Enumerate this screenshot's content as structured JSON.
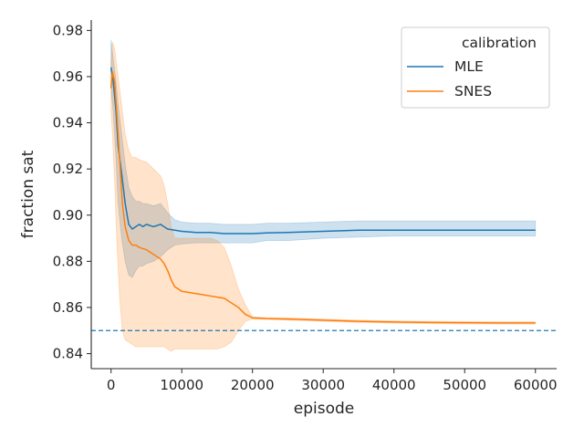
{
  "chart_data": {
    "type": "line",
    "title": "",
    "xlabel": "episode",
    "ylabel": "fraction sat",
    "xlim": [
      -2800,
      63000
    ],
    "ylim": [
      0.8335,
      0.9845
    ],
    "xticks": [
      0,
      10000,
      20000,
      30000,
      40000,
      50000,
      60000
    ],
    "xtick_labels": [
      "0",
      "10000",
      "20000",
      "30000",
      "40000",
      "50000",
      "60000"
    ],
    "yticks": [
      0.84,
      0.86,
      0.88,
      0.9,
      0.92,
      0.94,
      0.96,
      0.98
    ],
    "ytick_labels": [
      "0.84",
      "0.86",
      "0.88",
      "0.90",
      "0.92",
      "0.94",
      "0.96",
      "0.98"
    ],
    "legend": {
      "title": "calibration",
      "location": "top-right"
    },
    "reference_line": {
      "y": 0.85,
      "style": "dashed",
      "color": "#1f77b4"
    },
    "series": [
      {
        "name": "MLE",
        "color": "#1f77b4",
        "x": [
          0,
          300,
          700,
          1000,
          1500,
          2000,
          2500,
          3000,
          3500,
          4000,
          4500,
          5000,
          6000,
          7000,
          8000,
          9000,
          10000,
          12000,
          14000,
          16000,
          18000,
          20000,
          22000,
          25000,
          30000,
          35000,
          40000,
          45000,
          50000,
          55000,
          60000
        ],
        "mean": [
          0.964,
          0.958,
          0.945,
          0.93,
          0.918,
          0.905,
          0.896,
          0.894,
          0.895,
          0.896,
          0.895,
          0.896,
          0.895,
          0.896,
          0.894,
          0.8935,
          0.893,
          0.8925,
          0.8925,
          0.892,
          0.892,
          0.892,
          0.8923,
          0.8925,
          0.893,
          0.8935,
          0.8935,
          0.8935,
          0.8935,
          0.8935,
          0.8935
        ],
        "lower": [
          0.955,
          0.945,
          0.925,
          0.905,
          0.89,
          0.88,
          0.874,
          0.873,
          0.876,
          0.878,
          0.878,
          0.879,
          0.88,
          0.882,
          0.885,
          0.887,
          0.8875,
          0.888,
          0.888,
          0.888,
          0.888,
          0.888,
          0.889,
          0.889,
          0.89,
          0.8905,
          0.891,
          0.891,
          0.891,
          0.891,
          0.891
        ],
        "upper": [
          0.976,
          0.968,
          0.958,
          0.948,
          0.935,
          0.922,
          0.912,
          0.908,
          0.906,
          0.906,
          0.905,
          0.905,
          0.904,
          0.905,
          0.901,
          0.898,
          0.897,
          0.8965,
          0.8965,
          0.896,
          0.896,
          0.896,
          0.8965,
          0.8965,
          0.897,
          0.8975,
          0.8975,
          0.8975,
          0.8975,
          0.8975,
          0.8975
        ]
      },
      {
        "name": "SNES",
        "color": "#ff7f0e",
        "x": [
          0,
          200,
          500,
          800,
          1200,
          1600,
          2000,
          2500,
          3000,
          3500,
          4000,
          5000,
          6000,
          7000,
          7500,
          8000,
          8500,
          9000,
          10000,
          11000,
          12000,
          13000,
          14000,
          15000,
          16000,
          17000,
          18000,
          19000,
          20000,
          22000,
          25000,
          30000,
          35000,
          40000,
          45000,
          50000,
          55000,
          60000
        ],
        "mean": [
          0.955,
          0.962,
          0.958,
          0.945,
          0.925,
          0.905,
          0.895,
          0.889,
          0.887,
          0.887,
          0.886,
          0.885,
          0.883,
          0.881,
          0.879,
          0.876,
          0.872,
          0.869,
          0.867,
          0.8665,
          0.866,
          0.8655,
          0.865,
          0.8645,
          0.864,
          0.862,
          0.86,
          0.857,
          0.8555,
          0.8552,
          0.855,
          0.8545,
          0.854,
          0.8537,
          0.8535,
          0.8534,
          0.8533,
          0.8533
        ],
        "lower": [
          0.945,
          0.935,
          0.915,
          0.89,
          0.865,
          0.85,
          0.846,
          0.845,
          0.844,
          0.843,
          0.843,
          0.843,
          0.843,
          0.843,
          0.843,
          0.842,
          0.841,
          0.842,
          0.842,
          0.842,
          0.842,
          0.842,
          0.842,
          0.842,
          0.843,
          0.845,
          0.85,
          0.854,
          0.855,
          0.8548,
          0.8545,
          0.854,
          0.8535,
          0.8532,
          0.853,
          0.8529,
          0.8528,
          0.8528
        ],
        "upper": [
          0.965,
          0.975,
          0.972,
          0.965,
          0.955,
          0.945,
          0.935,
          0.928,
          0.925,
          0.925,
          0.924,
          0.923,
          0.92,
          0.917,
          0.913,
          0.905,
          0.895,
          0.89,
          0.89,
          0.89,
          0.89,
          0.89,
          0.89,
          0.889,
          0.886,
          0.878,
          0.868,
          0.861,
          0.856,
          0.8556,
          0.8555,
          0.855,
          0.8545,
          0.8542,
          0.854,
          0.8539,
          0.8538,
          0.8538
        ]
      }
    ]
  }
}
